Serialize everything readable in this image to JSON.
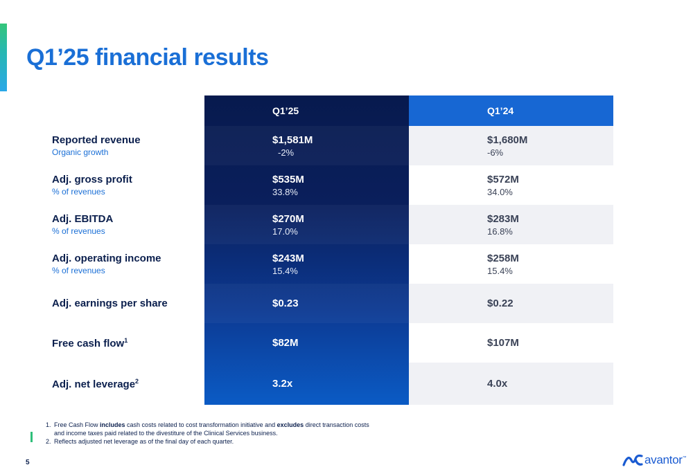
{
  "title": "Q1’25 financial results",
  "columns": {
    "current": "Q1’25",
    "prior": "Q1’24"
  },
  "rows": [
    {
      "label": "Reported revenue",
      "sublabel": "Organic growth",
      "sup": "",
      "current": "$1,581M",
      "current_sub": "-2%",
      "prior": "$1,680M",
      "prior_sub": "-6%"
    },
    {
      "label": "Adj. gross profit",
      "sublabel": "% of revenues",
      "sup": "",
      "current": "$535M",
      "current_sub": "33.8%",
      "prior": "$572M",
      "prior_sub": "34.0%"
    },
    {
      "label": "Adj. EBITDA",
      "sublabel": "% of revenues",
      "sup": "",
      "current": "$270M",
      "current_sub": "17.0%",
      "prior": "$283M",
      "prior_sub": "16.8%"
    },
    {
      "label": "Adj. operating income",
      "sublabel": "% of revenues",
      "sup": "",
      "current": "$243M",
      "current_sub": "15.4%",
      "prior": "$258M",
      "prior_sub": "15.4%"
    },
    {
      "label": "Adj. earnings per share",
      "sublabel": "",
      "sup": "",
      "current": "$0.23",
      "current_sub": "",
      "prior": "$0.22",
      "prior_sub": ""
    },
    {
      "label": "Free cash flow",
      "sublabel": "",
      "sup": "1",
      "current": "$82M",
      "current_sub": "",
      "prior": "$107M",
      "prior_sub": ""
    },
    {
      "label": "Adj. net leverage",
      "sublabel": "",
      "sup": "2",
      "current": "3.2x",
      "current_sub": "",
      "prior": "4.0x",
      "prior_sub": ""
    }
  ],
  "footnotes": {
    "n1": "1.",
    "fn1_a": "Free Cash Flow ",
    "fn1_b": "includes",
    "fn1_c": " cash costs related to cost transformation initiative and ",
    "fn1_d": "excludes",
    "fn1_e": " direct transaction costs and income taxes paid related to the divestiture of the Clinical Services business.",
    "n2": "2.",
    "fn2": "Reflects adjusted net leverage as of the final day of each quarter."
  },
  "page_number": "5",
  "logo": {
    "word": "avantor",
    "tm": "™",
    "icon": "avantor-wave-icon"
  },
  "colors": {
    "accent": "#1a6fd6",
    "dark_column": "#0a1f5c",
    "prior_header": "#1767d3",
    "shade": "#f0f1f5"
  }
}
